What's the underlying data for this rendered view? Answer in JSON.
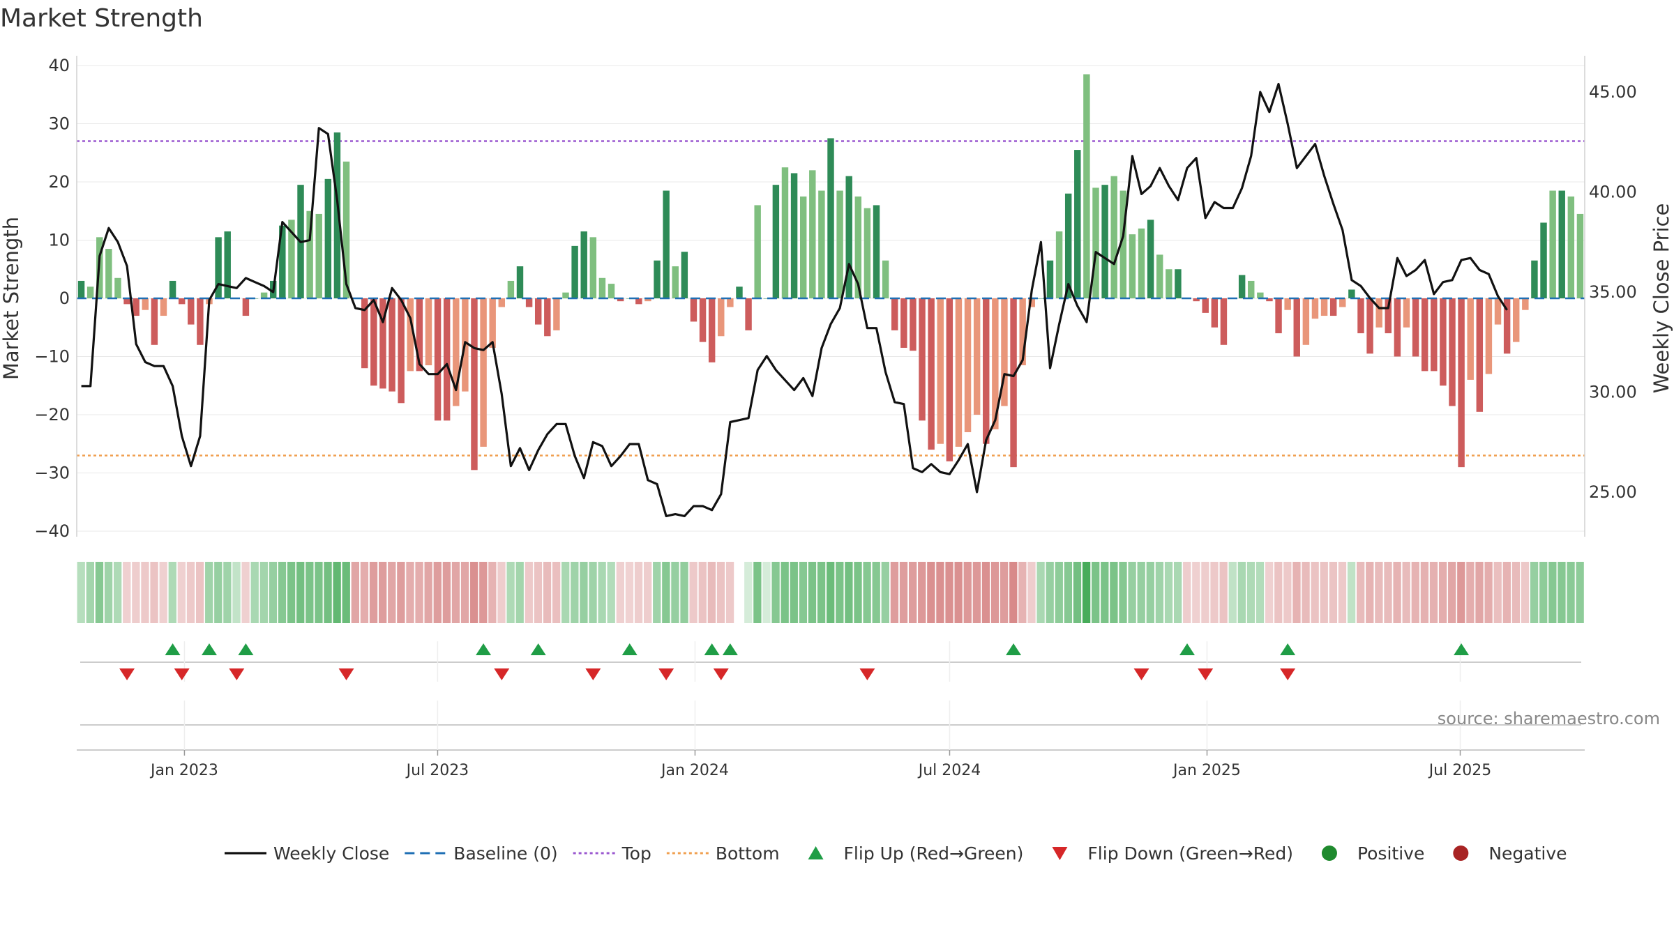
{
  "chart_data": {
    "type": "bar",
    "title": "Market Strength",
    "ylabel_left": "Market Strength",
    "ylabel_right": "Weekly Close Price",
    "ylim_left": [
      -42,
      42
    ],
    "ylim_right": [
      22.5,
      47.0
    ],
    "yticks_left": [
      "40",
      "30",
      "20",
      "10",
      "0",
      "−10",
      "−20",
      "−30",
      "−40"
    ],
    "yticks_left_values": [
      40,
      30,
      20,
      10,
      0,
      -10,
      -20,
      -30,
      -40
    ],
    "yticks_right": [
      "45.00",
      "40.00",
      "35.00",
      "30.00",
      "25.00"
    ],
    "yticks_right_values": [
      45,
      40,
      35,
      30,
      25
    ],
    "top_line": 27,
    "bottom_line": -27,
    "x_range": [
      "2022-10-16",
      "2025-09-28"
    ],
    "x_ticks": [
      {
        "label": "Jan 2023",
        "date": "2023-01-01"
      },
      {
        "label": "Jul 2023",
        "date": "2023-07-01"
      },
      {
        "label": "Jan 2024",
        "date": "2024-01-01"
      },
      {
        "label": "Jul 2024",
        "date": "2024-07-01"
      },
      {
        "label": "Jan 2025",
        "date": "2025-01-01"
      },
      {
        "label": "Jul 2025",
        "date": "2025-07-01"
      }
    ],
    "strength": [
      3,
      2,
      10.5,
      8.5,
      3.5,
      -1,
      -3,
      -2,
      -8,
      -3,
      3,
      -1,
      -4.5,
      -8,
      -1,
      10.5,
      11.5,
      0,
      -3,
      0,
      1,
      3,
      12.5,
      13.5,
      19.5,
      15,
      14.5,
      20.5,
      28.5,
      23.5,
      0,
      -12,
      -15,
      -15.5,
      -16,
      -18,
      -12.5,
      -12.5,
      -11.5,
      -21,
      -21,
      -18.5,
      -16,
      -29.5,
      -25.5,
      -8.5,
      -1.5,
      3,
      5.5,
      -1.5,
      -4.5,
      -6.5,
      -5.5,
      1,
      9,
      11.5,
      10.5,
      3.5,
      2.5,
      -0.5,
      0,
      -1,
      -0.5,
      6.5,
      18.5,
      5.5,
      8,
      -4,
      -7.5,
      -11,
      -6.5,
      -1.5,
      2,
      -5.5,
      16,
      0,
      19.5,
      22.5,
      21.5,
      17.5,
      22,
      18.5,
      27.5,
      18.5,
      21,
      17.5,
      15.5,
      16,
      6.5,
      -5.5,
      -8.5,
      -9,
      -21,
      -26,
      -25,
      -28,
      -25.5,
      -23,
      -20,
      -25,
      -22.5,
      -18.5,
      -29,
      -11.5,
      -1.5,
      0,
      6.5,
      11.5,
      18,
      25.5,
      38.5,
      19,
      19.5,
      21,
      18.5,
      11,
      12,
      13.5,
      7.5,
      5,
      5,
      0,
      -0.5,
      -2.5,
      -5,
      -8,
      0,
      4,
      3,
      1,
      -0.5,
      -6,
      -2,
      -10,
      -8,
      -3.5,
      -3,
      -3,
      -1.5,
      1.5,
      -6,
      -9.5,
      -5,
      -6,
      -10,
      -5,
      -10,
      -12.5,
      -12.5,
      -15,
      -18.5,
      -29,
      -14,
      -19.5,
      -13,
      -4.5,
      -9.5,
      -7.5,
      -2,
      6.5,
      13,
      18.5,
      18.5,
      17.5,
      14.5
    ],
    "close": [
      30.3,
      30.3,
      36.8,
      38.2,
      37.5,
      36.3,
      32.4,
      31.5,
      31.3,
      31.3,
      30.3,
      27.8,
      26.3,
      27.8,
      34.6,
      35.4,
      35.3,
      35.2,
      35.7,
      35.5,
      35.3,
      35.0,
      38.5,
      38.0,
      37.5,
      37.6,
      43.2,
      42.9,
      39.6,
      35.4,
      34.2,
      34.1,
      34.6,
      33.5,
      35.2,
      34.6,
      33.7,
      31.4,
      30.9,
      30.9,
      31.4,
      30.1,
      32.5,
      32.2,
      32.1,
      32.5,
      29.9,
      26.3,
      27.2,
      26.1,
      27.1,
      27.9,
      28.4,
      28.4,
      26.8,
      25.7,
      27.5,
      27.3,
      26.3,
      26.8,
      27.4,
      27.4,
      25.6,
      25.4,
      23.8,
      23.9,
      23.8,
      24.3,
      24.3,
      24.1,
      24.9,
      28.5,
      28.6,
      28.7,
      31.1,
      31.8,
      31.1,
      30.6,
      30.1,
      30.7,
      29.8,
      32.2,
      33.4,
      34.2,
      36.4,
      35.4,
      33.2,
      33.2,
      31.0,
      29.5,
      29.4,
      26.2,
      26.0,
      26.4,
      26.0,
      25.9,
      26.6,
      27.4,
      25.0,
      27.6,
      28.6,
      30.9,
      30.8,
      31.6,
      35.1,
      37.5,
      31.2,
      33.4,
      35.4,
      34.3,
      33.5,
      37.0,
      36.7,
      36.4,
      37.8,
      41.8,
      39.9,
      40.3,
      41.2,
      40.3,
      39.6,
      41.2,
      41.7,
      38.7,
      39.5,
      39.2,
      39.2,
      40.2,
      41.8,
      45.0,
      44.0,
      45.4,
      43.4,
      41.2,
      41.8,
      42.4,
      40.8,
      39.4,
      38.1,
      35.6,
      35.3,
      34.7,
      34.2,
      34.2,
      36.7,
      35.8,
      36.1,
      36.6,
      34.9,
      35.5,
      35.6,
      36.6,
      36.7,
      36.1,
      35.9,
      34.8,
      34.1
    ],
    "color_band": [
      0.18,
      0.28,
      0.45,
      0.3,
      0.22,
      -0.1,
      -0.12,
      -0.15,
      -0.2,
      -0.1,
      0.22,
      -0.1,
      -0.15,
      -0.2,
      0.3,
      0.35,
      0.3,
      0.1,
      -0.1,
      0.25,
      0.28,
      0.35,
      0.45,
      0.5,
      0.55,
      0.5,
      0.5,
      0.55,
      0.65,
      0.6,
      -0.4,
      -0.35,
      -0.45,
      -0.45,
      -0.4,
      -0.45,
      -0.35,
      -0.35,
      -0.4,
      -0.45,
      -0.45,
      -0.4,
      -0.4,
      -0.55,
      -0.5,
      -0.3,
      -0.12,
      0.22,
      0.28,
      -0.15,
      -0.2,
      -0.25,
      -0.22,
      0.25,
      0.3,
      0.35,
      0.3,
      0.25,
      0.2,
      -0.1,
      -0.08,
      -0.12,
      -0.12,
      0.3,
      0.45,
      0.35,
      0.38,
      -0.15,
      -0.2,
      -0.25,
      -0.2,
      -0.15,
      0.3,
      0,
      0.5,
      0,
      0.45,
      0.5,
      0.5,
      0.45,
      0.5,
      0.5,
      0.6,
      0.5,
      0.55,
      0.5,
      0.45,
      0.45,
      0.35,
      -0.45,
      -0.45,
      -0.45,
      -0.5,
      -0.55,
      -0.55,
      -0.55,
      -0.55,
      -0.5,
      -0.5,
      -0.55,
      -0.5,
      -0.45,
      -0.6,
      -0.3,
      -0.12,
      0.25,
      0.35,
      0.4,
      0.45,
      0.55,
      0.8,
      0.5,
      0.5,
      0.5,
      0.45,
      0.35,
      0.35,
      0.35,
      0.3,
      0.25,
      0.25,
      -0.12,
      -0.1,
      -0.12,
      -0.15,
      -0.2,
      0.12,
      0.25,
      0.22,
      0.2,
      -0.1,
      -0.2,
      -0.15,
      -0.3,
      -0.25,
      -0.2,
      -0.18,
      -0.18,
      -0.15,
      0.12,
      -0.25,
      -0.3,
      -0.25,
      -0.25,
      -0.3,
      -0.25,
      -0.3,
      -0.32,
      -0.32,
      -0.35,
      -0.4,
      -0.5,
      -0.35,
      -0.4,
      -0.35,
      -0.22,
      -0.3,
      -0.25,
      -0.15,
      0.35,
      0.4,
      0.45,
      0.45,
      0.42,
      0.4
    ],
    "flip_up_weeks": [
      10,
      14,
      18,
      44,
      50,
      60,
      69,
      71,
      102,
      121,
      132,
      151
    ],
    "flip_down_weeks": [
      5,
      11,
      17,
      29,
      46,
      56,
      64,
      70,
      86,
      116,
      123,
      132
    ],
    "band_gap_weeks": [
      72
    ],
    "legend": [
      {
        "label": "Weekly Close",
        "icon": "line-solid",
        "color": "#111111"
      },
      {
        "label": "Baseline (0)",
        "icon": "line-dashed",
        "color": "#1f6fb4"
      },
      {
        "label": "Top",
        "icon": "line-dotted",
        "color": "#9b59d0"
      },
      {
        "label": "Bottom",
        "icon": "line-dotted",
        "color": "#f0a050"
      },
      {
        "label": "Flip Up (Red→Green)",
        "icon": "triangle-up",
        "color": "#1f9d46"
      },
      {
        "label": "Flip Down (Green→Red)",
        "icon": "triangle-down",
        "color": "#d62728"
      },
      {
        "label": "Positive",
        "icon": "dot",
        "color": "#1f8a2e"
      },
      {
        "label": "Negative",
        "icon": "dot",
        "color": "#a82323"
      }
    ],
    "source": "source: sharemaestro.com",
    "colors": {
      "pos_strong": "#2e8b57",
      "pos_light": "#7fbf7f",
      "neg_strong": "#cd5c5c",
      "neg_light": "#e9967a",
      "close": "#111111",
      "baseline": "#1f6fb4",
      "top": "#9b59d0",
      "bottom": "#f0a050"
    }
  }
}
